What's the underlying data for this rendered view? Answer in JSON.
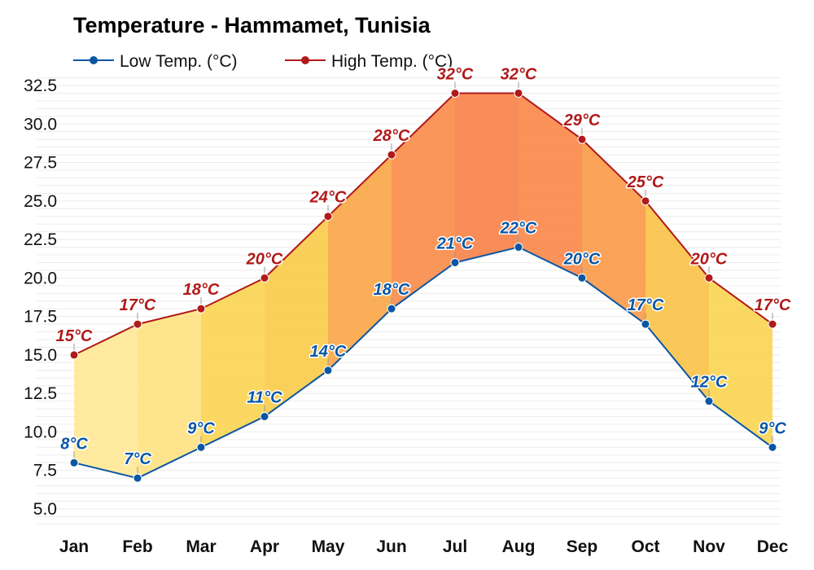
{
  "chart_data": {
    "type": "area",
    "title": "Temperature - Hammamet, Tunisia",
    "categories": [
      "Jan",
      "Feb",
      "Mar",
      "Apr",
      "May",
      "Jun",
      "Jul",
      "Aug",
      "Sep",
      "Oct",
      "Nov",
      "Dec"
    ],
    "series": [
      {
        "name": "Low Temp. (°C)",
        "color": "#0a56a4",
        "values": [
          8,
          7,
          9,
          11,
          14,
          18,
          21,
          22,
          20,
          17,
          12,
          9
        ],
        "labels": [
          "8°C",
          "7°C",
          "9°C",
          "11°C",
          "14°C",
          "18°C",
          "21°C",
          "22°C",
          "20°C",
          "17°C",
          "12°C",
          "9°C"
        ]
      },
      {
        "name": "High Temp. (°C)",
        "color": "#b01a1a",
        "values": [
          15,
          17,
          18,
          20,
          24,
          28,
          32,
          32,
          29,
          25,
          20,
          17
        ],
        "labels": [
          "15°C",
          "17°C",
          "18°C",
          "20°C",
          "24°C",
          "28°C",
          "32°C",
          "32°C",
          "29°C",
          "25°C",
          "20°C",
          "17°C"
        ]
      }
    ],
    "yticks": [
      "5.0",
      "7.5",
      "10.0",
      "12.5",
      "15.0",
      "17.5",
      "20.0",
      "22.5",
      "25.0",
      "27.5",
      "30.0",
      "32.5"
    ],
    "ylim": [
      4,
      33.5
    ],
    "grid": true,
    "legend_position": "top-left"
  }
}
